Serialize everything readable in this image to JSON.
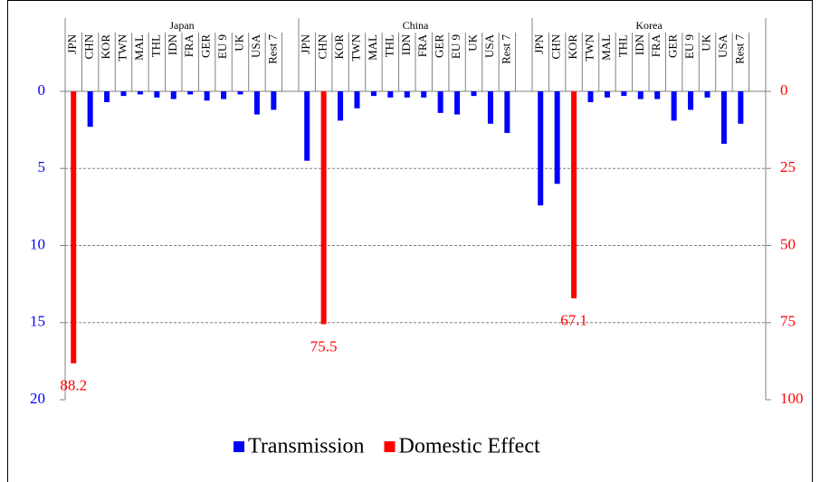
{
  "chart_data": {
    "type": "bar",
    "groups": [
      "Japan",
      "China",
      "Korea"
    ],
    "categories": [
      "JPN",
      "CHN",
      "KOR",
      "TWN",
      "MAL",
      "THL",
      "IDN",
      "FRA",
      "GER",
      "EU 9",
      "UK",
      "USA",
      "Rest 7",
      null,
      "JPN",
      "CHN",
      "KOR",
      "TWN",
      "MAL",
      "THL",
      "IDN",
      "FRA",
      "GER",
      "EU 9",
      "UK",
      "USA",
      "Rest 7",
      null,
      "JPN",
      "CHN",
      "KOR",
      "TWN",
      "MAL",
      "THL",
      "IDN",
      "FRA",
      "GER",
      "EU 9",
      "UK",
      "USA",
      "Rest 7",
      null
    ],
    "series": [
      {
        "name": "Transmission",
        "color": "#0000ff",
        "axis": "y",
        "values": [
          null,
          2.3,
          0.7,
          0.3,
          0.2,
          0.4,
          0.5,
          0.2,
          0.6,
          0.5,
          0.2,
          1.5,
          1.2,
          null,
          4.5,
          null,
          1.9,
          1.1,
          0.3,
          0.4,
          0.4,
          0.4,
          1.4,
          1.5,
          0.3,
          2.1,
          2.7,
          null,
          7.4,
          6.0,
          null,
          0.7,
          0.4,
          0.3,
          0.5,
          0.5,
          1.9,
          1.2,
          0.4,
          3.4,
          2.1,
          null
        ]
      },
      {
        "name": "Domestic Effect",
        "color": "#ff0000",
        "axis": "y2",
        "values": [
          88.2,
          null,
          null,
          null,
          null,
          null,
          null,
          null,
          null,
          null,
          null,
          null,
          null,
          null,
          null,
          75.5,
          null,
          null,
          null,
          null,
          null,
          null,
          null,
          null,
          null,
          null,
          null,
          null,
          null,
          null,
          67.1,
          null,
          null,
          null,
          null,
          null,
          null,
          null,
          null,
          null,
          null,
          null
        ]
      }
    ],
    "ylim": [
      0,
      20
    ],
    "yticks": [
      0,
      5,
      10,
      15,
      20
    ],
    "y2lim": [
      0,
      100
    ],
    "y2ticks": [
      0,
      25,
      50,
      75,
      100
    ],
    "inverted": true,
    "grid": true,
    "legend": "bottom"
  }
}
